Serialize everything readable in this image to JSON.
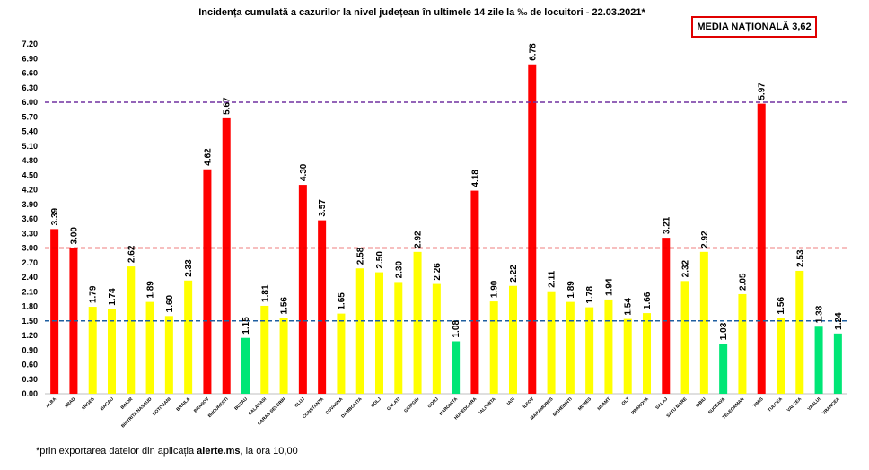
{
  "title": "Incidența cumulată a cazurilor la nivel județean în ultimele 14 zile la ‰ de locuitori - 22.03.2021*",
  "media_box": "MEDIA NAȚIONALĂ 3,62",
  "footnote": {
    "prefix": "*prin exportarea datelor din aplicația ",
    "brand": "alerte.ms",
    "suffix": ", la ora 10,00"
  },
  "colors": {
    "red": "#ff0000",
    "yellow": "#ffff00",
    "green": "#00e676",
    "purple_line": "#7030a0",
    "red_line": "#e00000",
    "blue_line": "#1f5fa0"
  },
  "chart_data": {
    "type": "bar",
    "categories": [
      "ALBA",
      "ARAD",
      "ARGES",
      "BACAU",
      "BIHOR",
      "BISTRITA NASAUD",
      "BOTOSANI",
      "BRAILA",
      "BRASOV",
      "BUCURESTI",
      "BUZAU",
      "CALARASI",
      "CARAS-SEVERIN",
      "CLUJ",
      "CONSTANTA",
      "COVASNA",
      "DAMBOVITA",
      "DOLJ",
      "GALATI",
      "GIURGIU",
      "GORJ",
      "HARGHITA",
      "HUNEDOARA",
      "IALOMITA",
      "IASI",
      "ILFOV",
      "MARAMURES",
      "MEHEDINTI",
      "MURES",
      "NEAMT",
      "OLT",
      "PRAHOVA",
      "SALAJ",
      "SATU MARE",
      "SIBIU",
      "SUCEAVA",
      "TELEORMAN",
      "TIMIS",
      "TULCEA",
      "VALCEA",
      "VASLUI",
      "VRANCEA"
    ],
    "values": [
      3.39,
      3.0,
      1.79,
      1.74,
      2.62,
      1.89,
      1.6,
      2.33,
      4.62,
      5.67,
      1.15,
      1.81,
      1.56,
      4.3,
      3.57,
      1.65,
      2.58,
      2.5,
      2.3,
      2.92,
      2.26,
      1.08,
      4.18,
      1.9,
      2.22,
      6.78,
      2.11,
      1.89,
      1.78,
      1.94,
      1.54,
      1.66,
      3.21,
      2.32,
      2.92,
      1.03,
      2.05,
      5.97,
      1.56,
      2.53,
      1.38,
      1.24
    ],
    "labels": [
      "3.39",
      "3.00",
      "1.79",
      "1.74",
      "2.62",
      "1.89",
      "1.60",
      "2.33",
      "4.62",
      "5.67",
      "1.15",
      "1.81",
      "1.56",
      "4.30",
      "3.57",
      "1.65",
      "2.58",
      "2.50",
      "2.30",
      "2.92",
      "2.26",
      "1.08",
      "4.18",
      "1.90",
      "2.22",
      "6.78",
      "2.11",
      "1.89",
      "1.78",
      "1.94",
      "1.54",
      "1.66",
      "3.21",
      "2.32",
      "2.92",
      "1.03",
      "2.05",
      "5.97",
      "1.56",
      "2.53",
      "1.38",
      "1.24"
    ],
    "bar_colors": [
      "red",
      "red",
      "yellow",
      "yellow",
      "yellow",
      "yellow",
      "yellow",
      "yellow",
      "red",
      "red",
      "green",
      "yellow",
      "yellow",
      "red",
      "red",
      "yellow",
      "yellow",
      "yellow",
      "yellow",
      "yellow",
      "yellow",
      "green",
      "red",
      "yellow",
      "yellow",
      "red",
      "yellow",
      "yellow",
      "yellow",
      "yellow",
      "yellow",
      "yellow",
      "red",
      "yellow",
      "yellow",
      "green",
      "yellow",
      "red",
      "yellow",
      "yellow",
      "green",
      "green"
    ],
    "yticks": [
      "0.00",
      "0.30",
      "0.60",
      "0.90",
      "1.20",
      "1.50",
      "1.80",
      "2.10",
      "2.40",
      "2.70",
      "3.00",
      "3.30",
      "3.60",
      "3.90",
      "4.20",
      "4.50",
      "4.80",
      "5.10",
      "5.40",
      "5.70",
      "6.00",
      "6.30",
      "6.60",
      "6.90",
      "7.20"
    ],
    "ylim": [
      0,
      7.2
    ],
    "thresholds": [
      {
        "value": 6.0,
        "color": "purple"
      },
      {
        "value": 3.0,
        "color": "red"
      },
      {
        "value": 1.5,
        "color": "blue"
      }
    ],
    "xlabel": "",
    "ylabel": "",
    "grid": false
  }
}
